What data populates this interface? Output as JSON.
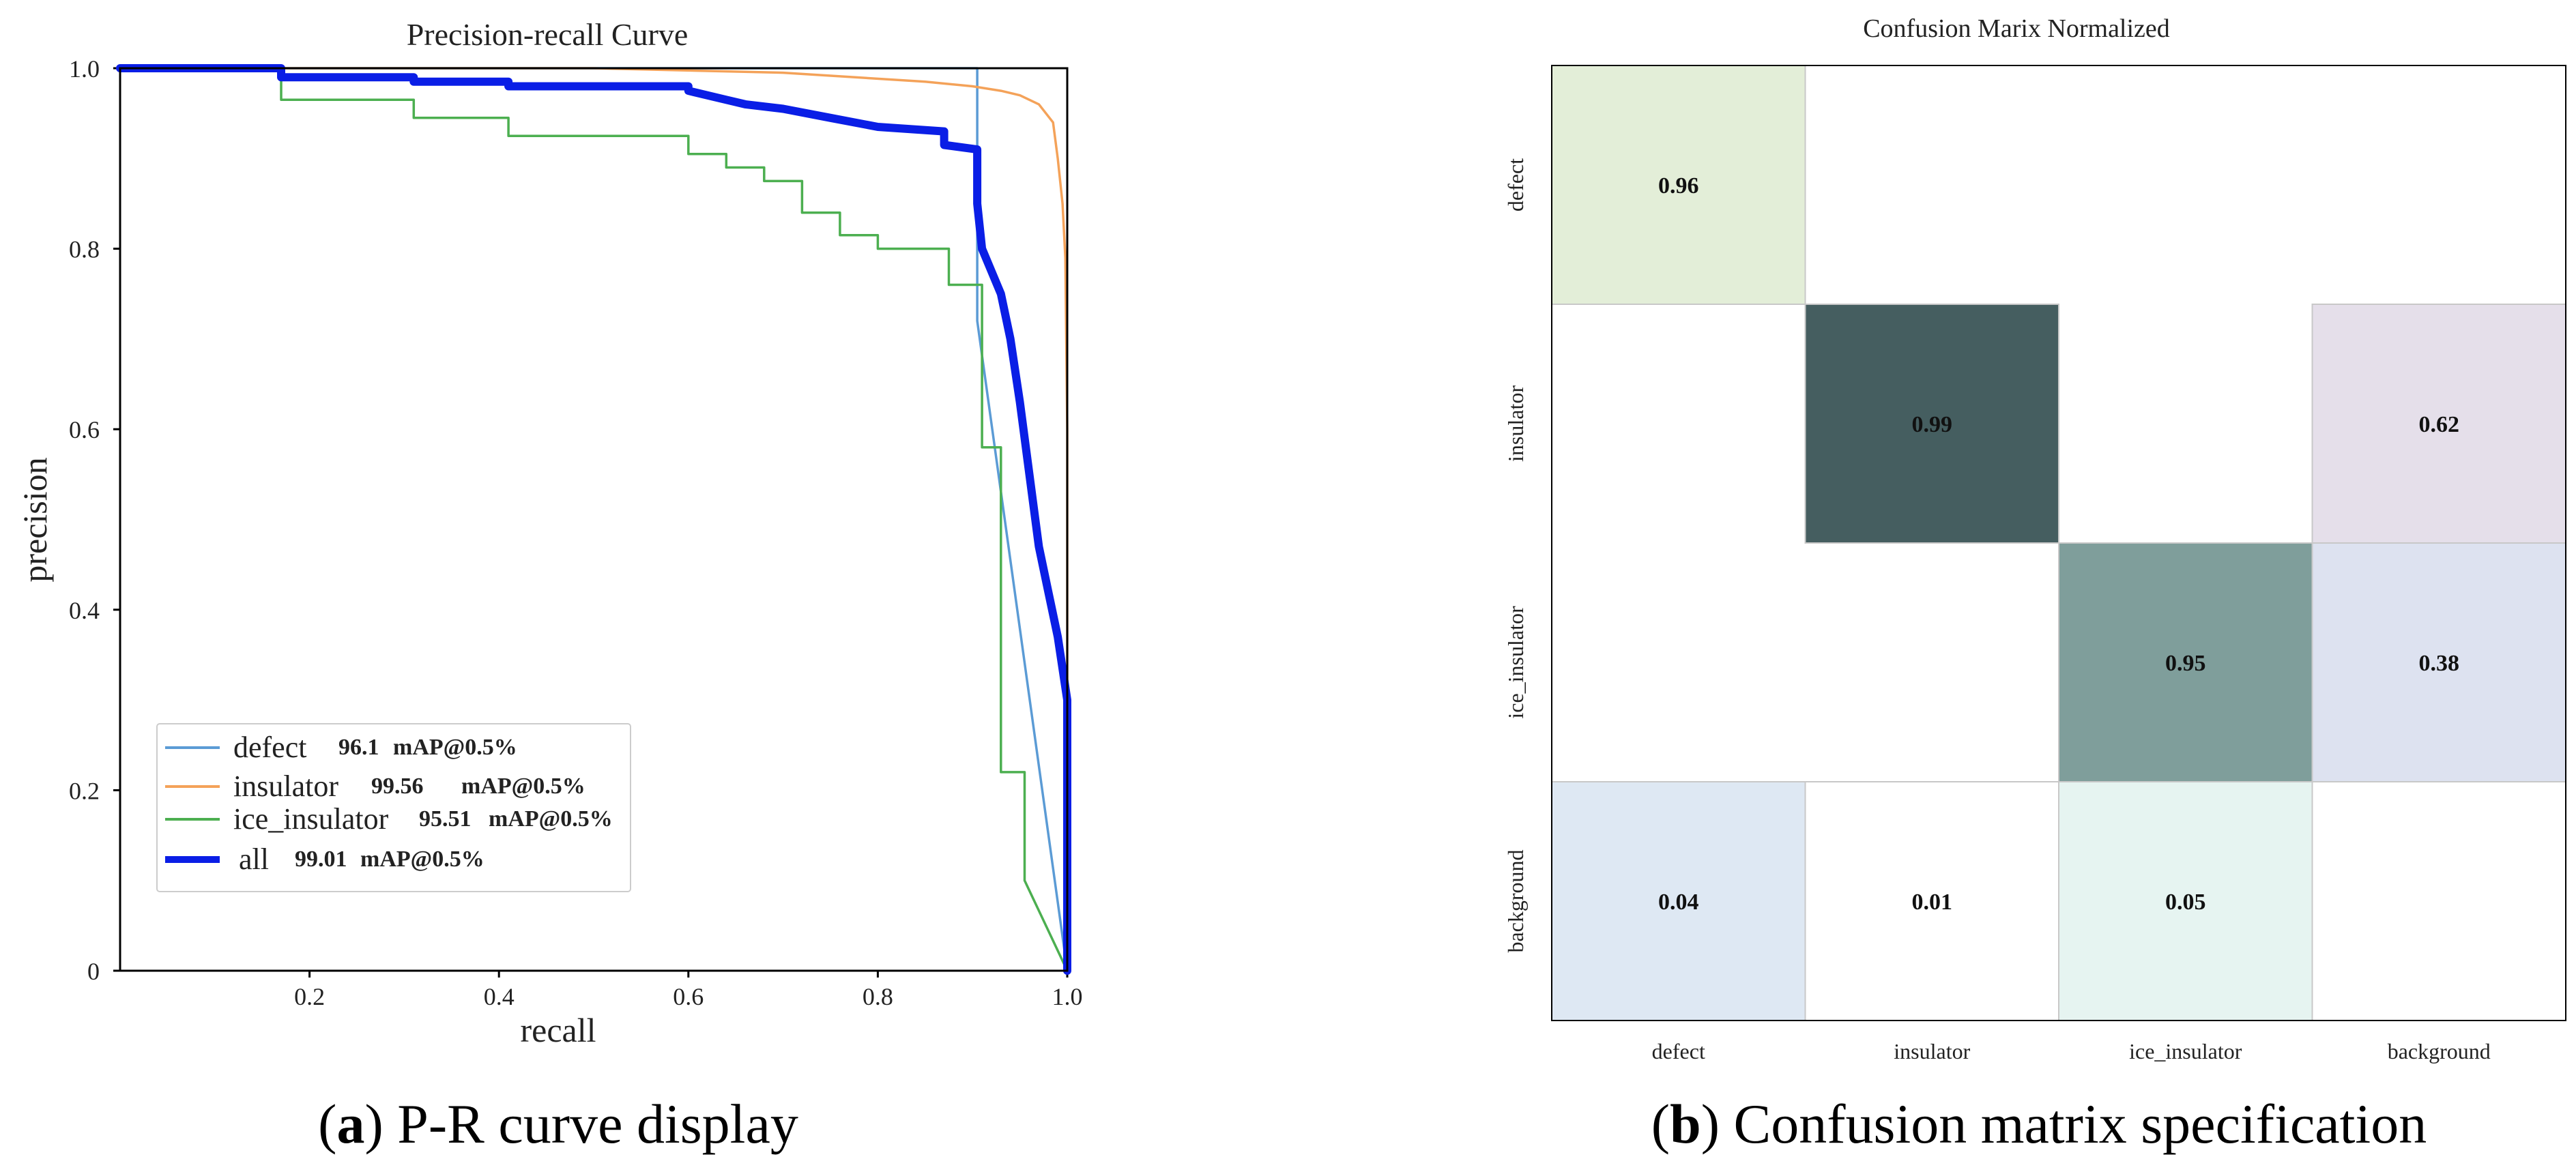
{
  "chart_data": [
    {
      "type": "line",
      "title": "Precision-recall Curve",
      "xlabel": "recall",
      "ylabel": "precision",
      "xlim": [
        0,
        1
      ],
      "ylim": [
        0,
        1
      ],
      "x_ticks": [
        0.2,
        0.4,
        0.6,
        0.8,
        1.0
      ],
      "x_tick_labels": [
        "0.2",
        "0.4",
        "0.6",
        "0.8",
        "1.0"
      ],
      "y_ticks": [
        0,
        0.2,
        0.4,
        0.6,
        0.8,
        1.0
      ],
      "y_tick_labels": [
        "0",
        "0.2",
        "0.4",
        "0.6",
        "0.8",
        "1.0"
      ],
      "legend_position": "bottom-left",
      "series": [
        {
          "name": "defect",
          "score": "96.1",
          "metric": "mAP@0.5%",
          "color": "#5b9bd5",
          "x": [
            0,
            0.905,
            0.905,
            1.0
          ],
          "y": [
            1.0,
            1.0,
            0.72,
            0.0
          ]
        },
        {
          "name": "insulator",
          "score": "99.56",
          "metric": "mAP@0.5%",
          "color": "#f4a259",
          "x": [
            0,
            0.5,
            0.7,
            0.85,
            0.9,
            0.93,
            0.95,
            0.97,
            0.985,
            0.99,
            0.995,
            0.998,
            1.0,
            1.0
          ],
          "y": [
            1.0,
            1.0,
            0.995,
            0.985,
            0.98,
            0.975,
            0.97,
            0.96,
            0.94,
            0.9,
            0.85,
            0.79,
            0.6,
            0.0
          ]
        },
        {
          "name": "ice_insulator",
          "score": "95.51",
          "metric": "mAP@0.5%",
          "color": "#4caf50",
          "x": [
            0,
            0.17,
            0.17,
            0.31,
            0.31,
            0.41,
            0.41,
            0.6,
            0.6,
            0.64,
            0.64,
            0.68,
            0.68,
            0.72,
            0.72,
            0.76,
            0.76,
            0.8,
            0.8,
            0.875,
            0.875,
            0.91,
            0.91,
            0.93,
            0.93,
            0.955,
            0.955,
            1.0
          ],
          "y": [
            1.0,
            1.0,
            0.965,
            0.965,
            0.945,
            0.945,
            0.925,
            0.925,
            0.905,
            0.905,
            0.89,
            0.89,
            0.875,
            0.875,
            0.84,
            0.84,
            0.815,
            0.815,
            0.8,
            0.8,
            0.76,
            0.76,
            0.58,
            0.58,
            0.22,
            0.22,
            0.1,
            0.0
          ]
        },
        {
          "name": "all",
          "score": "99.01",
          "metric": "mAP@0.5%",
          "color": "#0a1ee6",
          "x": [
            0,
            0.17,
            0.17,
            0.31,
            0.31,
            0.41,
            0.41,
            0.6,
            0.6,
            0.64,
            0.66,
            0.7,
            0.75,
            0.8,
            0.87,
            0.87,
            0.905,
            0.905,
            0.91,
            0.93,
            0.94,
            0.95,
            0.96,
            0.97,
            0.98,
            0.99,
            1.0,
            1.0
          ],
          "y": [
            1.0,
            1.0,
            0.99,
            0.99,
            0.985,
            0.985,
            0.98,
            0.98,
            0.975,
            0.965,
            0.96,
            0.955,
            0.945,
            0.935,
            0.93,
            0.915,
            0.91,
            0.85,
            0.8,
            0.75,
            0.7,
            0.63,
            0.55,
            0.47,
            0.42,
            0.37,
            0.3,
            0.0
          ]
        }
      ]
    },
    {
      "type": "heatmap",
      "title": "Confusion Marix Normalized",
      "row_labels": [
        "defect",
        "insulator",
        "ice_insulator",
        "background"
      ],
      "col_labels": [
        "defect",
        "insulator",
        "ice_insulator",
        "background"
      ],
      "cells": [
        {
          "row": 0,
          "col": 0,
          "value": "0.96",
          "color": "#e3eed8"
        },
        {
          "row": 1,
          "col": 1,
          "value": "0.99",
          "color": "#455e60"
        },
        {
          "row": 1,
          "col": 3,
          "value": "0.62",
          "color": "#e5dfea"
        },
        {
          "row": 2,
          "col": 2,
          "value": "0.95",
          "color": "#7f9e9b"
        },
        {
          "row": 2,
          "col": 3,
          "value": "0.38",
          "color": "#dde2f0"
        },
        {
          "row": 3,
          "col": 0,
          "value": "0.04",
          "color": "#dee8f3"
        },
        {
          "row": 3,
          "col": 1,
          "value": "0.01",
          "color": "#ffffff"
        },
        {
          "row": 3,
          "col": 2,
          "value": "0.05",
          "color": "#e6f4f1"
        }
      ]
    }
  ],
  "captions": {
    "a_letter": "a",
    "a_text": " P-R curve display",
    "b_letter": "b",
    "b_text": " Confusion matrix specification"
  }
}
